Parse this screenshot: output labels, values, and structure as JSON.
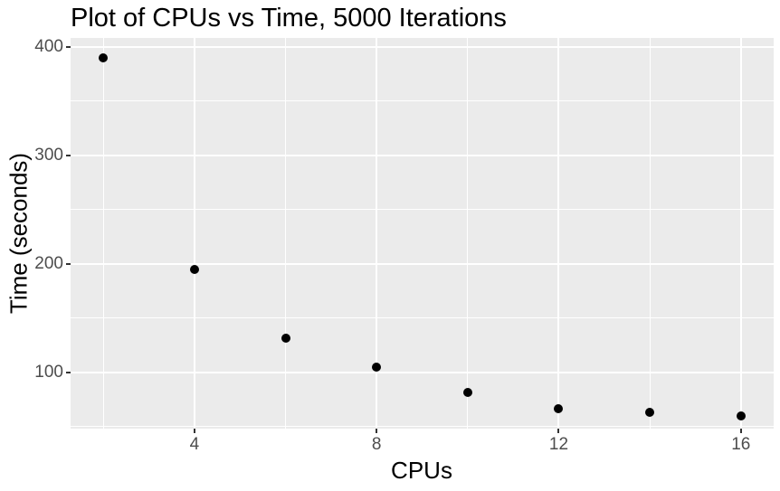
{
  "chart_data": {
    "type": "scatter",
    "title": "Plot of CPUs vs Time, 5000 Iterations",
    "xlabel": "CPUs",
    "ylabel": "Time (seconds)",
    "points": [
      {
        "x": 2,
        "y": 390
      },
      {
        "x": 4,
        "y": 195
      },
      {
        "x": 6,
        "y": 131
      },
      {
        "x": 8,
        "y": 105
      },
      {
        "x": 10,
        "y": 81
      },
      {
        "x": 12,
        "y": 66
      },
      {
        "x": 14,
        "y": 63
      },
      {
        "x": 16,
        "y": 60
      }
    ],
    "x_major_ticks": [
      4,
      8,
      12,
      16
    ],
    "x_minor_ticks": [
      2,
      6,
      10,
      14
    ],
    "y_major_ticks": [
      100,
      200,
      300,
      400
    ],
    "y_minor_ticks": [
      50,
      150,
      250,
      350
    ],
    "xlim": [
      1.28,
      16.72
    ],
    "ylim": [
      48,
      408
    ],
    "grid": true,
    "legend": "none",
    "style": {
      "page_bg": "#FFFFFF",
      "panel_bg": "#EBEBEB",
      "grid_color": "#FFFFFF",
      "point_color": "#000000",
      "axis_text_color": "#4D4D4D",
      "tick_mark_color": "#333333",
      "title_color": "#000000"
    }
  }
}
